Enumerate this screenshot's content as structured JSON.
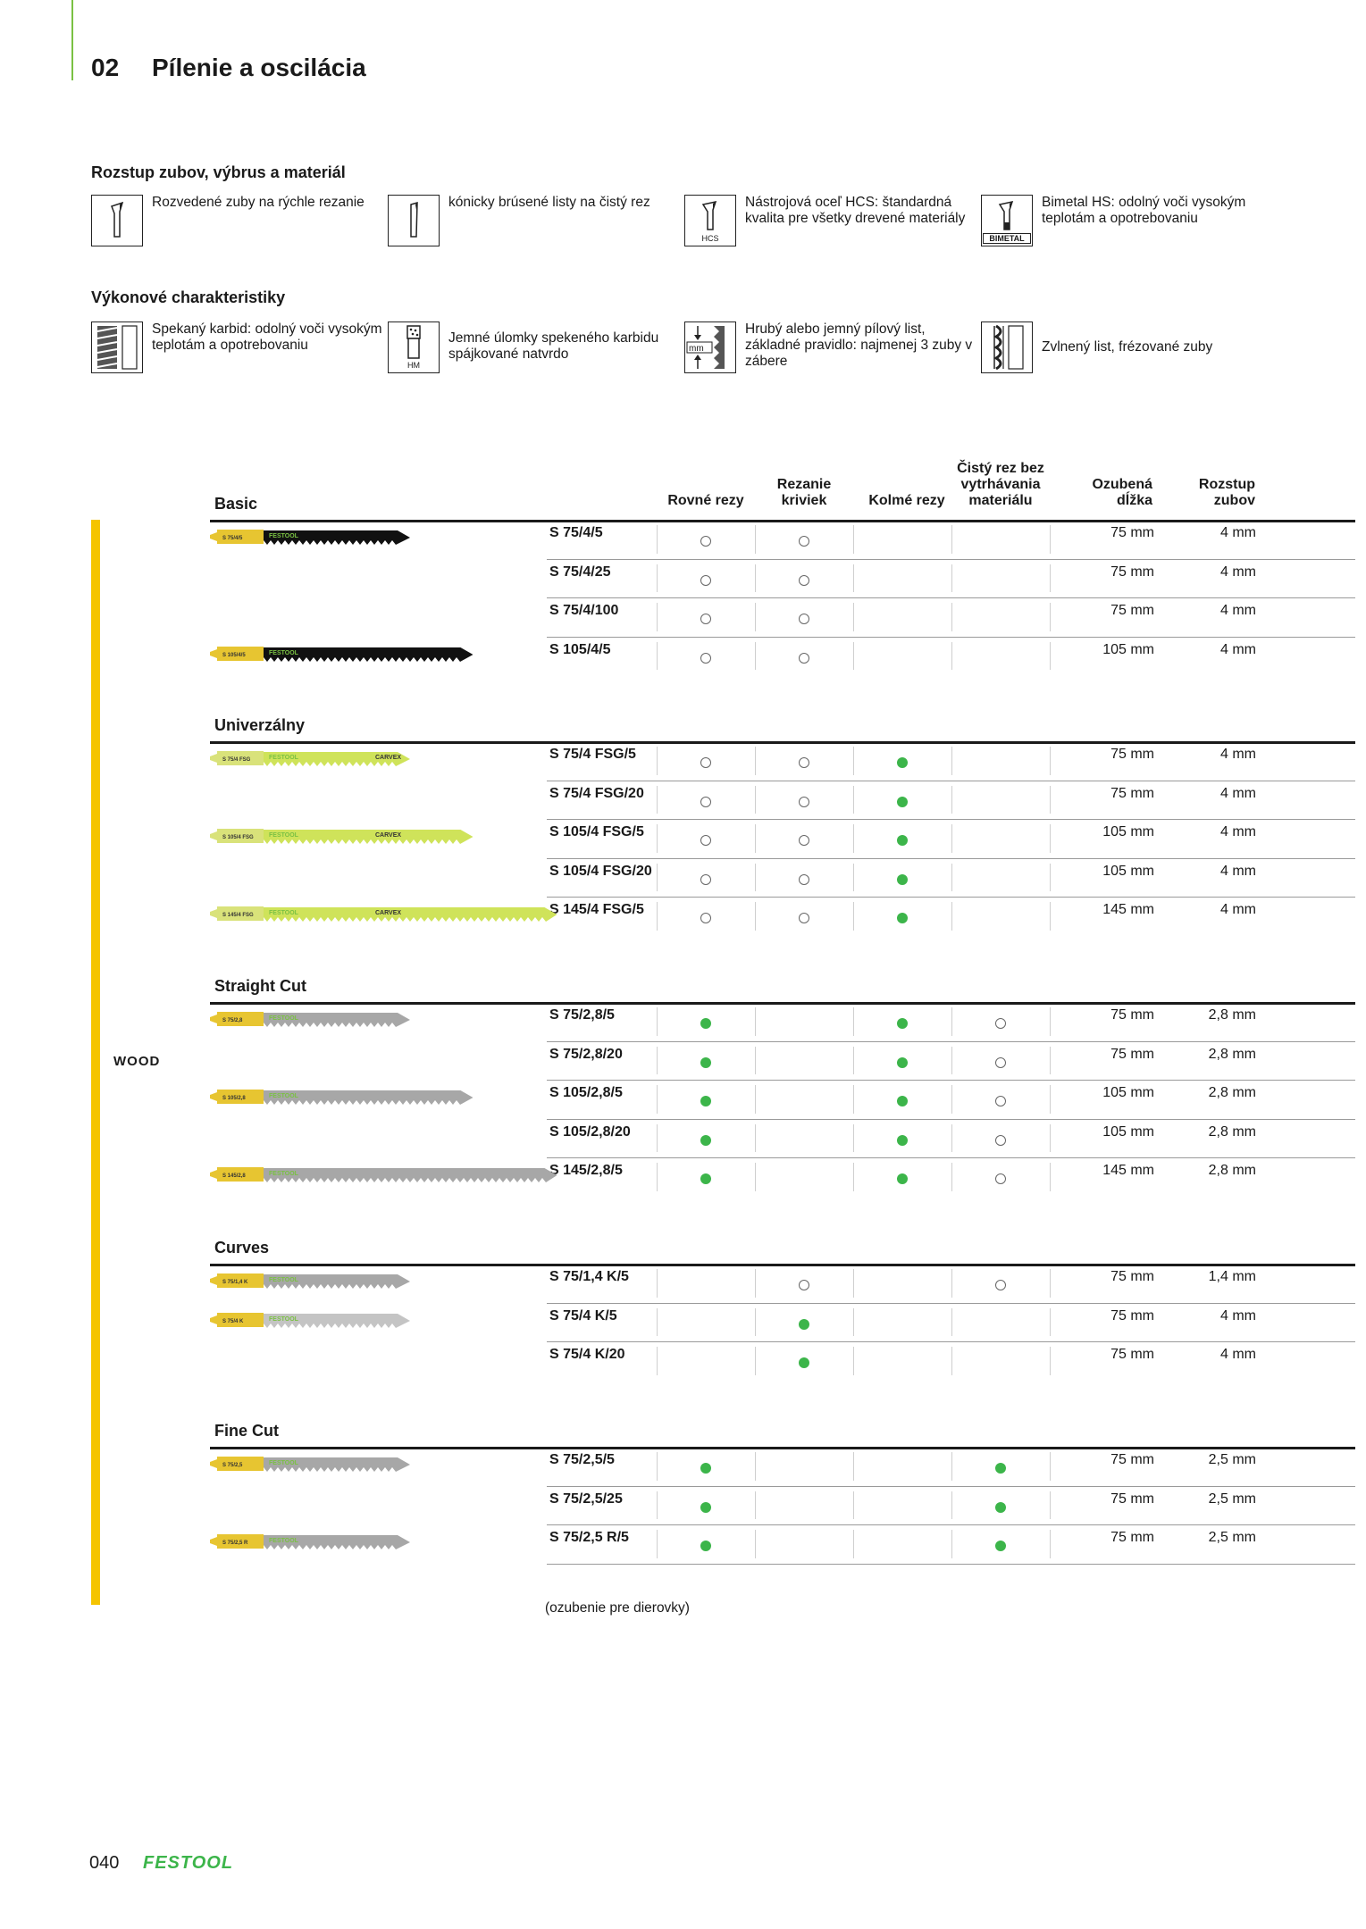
{
  "chapter": {
    "number": "02",
    "title": "Pílenie a oscilácia"
  },
  "section1": {
    "title": "Rozstup zubov, výbrus a materiál",
    "items": [
      {
        "icon": "set-teeth-icon",
        "text": "Rozvedené zuby na rýchle rezanie"
      },
      {
        "icon": "taper-ground-icon",
        "text": "kónicky brúsené listy na čistý rez"
      },
      {
        "icon": "hcs-icon",
        "badge": "HCS",
        "text": "Nástrojová oceľ HCS: štandardná kvalita pre všetky drevené materiály"
      },
      {
        "icon": "bimetal-icon",
        "badge": "BIMETAL",
        "text": "Bimetal HS: odolný voči vysokým teplotám a opotrebovaniu"
      }
    ]
  },
  "section2": {
    "title": "Výkonové charakteristiky",
    "items": [
      {
        "icon": "carbide-icon",
        "text": "Spekaný karbid: odolný voči vysokým teplotám a opotrebovaniu"
      },
      {
        "icon": "hm-grit-icon",
        "badge": "HM",
        "text": "Jemné úlomky spekeného karbidu spájkované natvrdo"
      },
      {
        "icon": "tooth-pitch-icon",
        "badge": "mm",
        "text": "Hrubý alebo jemný pílový list, základné pravidlo: najmenej 3 zuby v zábere"
      },
      {
        "icon": "wavy-blade-icon",
        "text": "Zvlnený list, frézované zuby"
      }
    ]
  },
  "table": {
    "material": "WOOD",
    "headers": {
      "straight": "Rovné rezy",
      "curves_l1": "Rezanie",
      "curves_l2": "kriviek",
      "perp": "Kolmé rezy",
      "clean_l1": "Čistý rez bez",
      "clean_l2": "vytrhávania",
      "clean_l3": "materiálu",
      "length_l1": "Ozubená",
      "length_l2": "dĺžka",
      "pitch_l1": "Rozstup",
      "pitch_l2": "zubov"
    },
    "groups": [
      {
        "name": "Basic",
        "rows": [
          {
            "code": "S 75/4/5",
            "straight": "open",
            "curves": "open",
            "perp": "",
            "clean": "",
            "length": "75 mm",
            "pitch": "4 mm"
          },
          {
            "code": "S 75/4/25",
            "straight": "open",
            "curves": "open",
            "perp": "",
            "clean": "",
            "length": "75 mm",
            "pitch": "4 mm"
          },
          {
            "code": "S 75/4/100",
            "straight": "open",
            "curves": "open",
            "perp": "",
            "clean": "",
            "length": "75 mm",
            "pitch": "4 mm"
          },
          {
            "code": "S 105/4/5",
            "straight": "open",
            "curves": "open",
            "perp": "",
            "clean": "",
            "length": "105 mm",
            "pitch": "4 mm"
          }
        ]
      },
      {
        "name": "Univerzálny",
        "rows": [
          {
            "code": "S 75/4 FSG/5",
            "straight": "open",
            "curves": "open",
            "perp": "full",
            "clean": "",
            "length": "75 mm",
            "pitch": "4 mm"
          },
          {
            "code": "S 75/4 FSG/20",
            "straight": "open",
            "curves": "open",
            "perp": "full",
            "clean": "",
            "length": "75 mm",
            "pitch": "4 mm"
          },
          {
            "code": "S 105/4 FSG/5",
            "straight": "open",
            "curves": "open",
            "perp": "full",
            "clean": "",
            "length": "105 mm",
            "pitch": "4 mm"
          },
          {
            "code": "S 105/4 FSG/20",
            "straight": "open",
            "curves": "open",
            "perp": "full",
            "clean": "",
            "length": "105 mm",
            "pitch": "4 mm"
          },
          {
            "code": "S 145/4 FSG/5",
            "straight": "open",
            "curves": "open",
            "perp": "full",
            "clean": "",
            "length": "145 mm",
            "pitch": "4 mm"
          }
        ]
      },
      {
        "name": "Straight Cut",
        "rows": [
          {
            "code": "S 75/2,8/5",
            "straight": "full",
            "curves": "",
            "perp": "full",
            "clean": "open",
            "length": "75 mm",
            "pitch": "2,8 mm"
          },
          {
            "code": "S 75/2,8/20",
            "straight": "full",
            "curves": "",
            "perp": "full",
            "clean": "open",
            "length": "75 mm",
            "pitch": "2,8 mm"
          },
          {
            "code": "S 105/2,8/5",
            "straight": "full",
            "curves": "",
            "perp": "full",
            "clean": "open",
            "length": "105 mm",
            "pitch": "2,8 mm"
          },
          {
            "code": "S 105/2,8/20",
            "straight": "full",
            "curves": "",
            "perp": "full",
            "clean": "open",
            "length": "105 mm",
            "pitch": "2,8 mm"
          },
          {
            "code": "S 145/2,8/5",
            "straight": "full",
            "curves": "",
            "perp": "full",
            "clean": "open",
            "length": "145 mm",
            "pitch": "2,8 mm"
          }
        ]
      },
      {
        "name": "Curves",
        "rows": [
          {
            "code": "S 75/1,4 K/5",
            "straight": "",
            "curves": "open",
            "perp": "",
            "clean": "open",
            "length": "75 mm",
            "pitch": "1,4 mm"
          },
          {
            "code": "S 75/4 K/5",
            "straight": "",
            "curves": "full",
            "perp": "",
            "clean": "",
            "length": "75 mm",
            "pitch": "4 mm"
          },
          {
            "code": "S 75/4 K/20",
            "straight": "",
            "curves": "full",
            "perp": "",
            "clean": "",
            "length": "75 mm",
            "pitch": "4 mm"
          }
        ]
      },
      {
        "name": "Fine Cut",
        "rows": [
          {
            "code": "S 75/2,5/5",
            "straight": "full",
            "curves": "",
            "perp": "",
            "clean": "full",
            "length": "75 mm",
            "pitch": "2,5 mm"
          },
          {
            "code": "S 75/2,5/25",
            "straight": "full",
            "curves": "",
            "perp": "",
            "clean": "full",
            "length": "75 mm",
            "pitch": "2,5 mm"
          },
          {
            "code": "S 75/2,5 R/5",
            "straight": "full",
            "curves": "",
            "perp": "",
            "clean": "full",
            "length": "75 mm",
            "pitch": "2,5 mm"
          }
        ]
      }
    ],
    "blades": [
      {
        "group": 0,
        "row": 0,
        "label": "S 75/4/5",
        "brand": "FESTOOL",
        "color": "#111111",
        "shank": "#e7c531",
        "len": 75
      },
      {
        "group": 0,
        "row": 3,
        "label": "S 105/4/5",
        "brand": "FESTOOL",
        "color": "#111111",
        "shank": "#e7c531",
        "len": 105
      },
      {
        "group": 1,
        "row": 0,
        "label": "S 75/4 FSG",
        "brand": "FESTOOL",
        "extra": "CARVEX",
        "color": "#cfe35a",
        "shank": "#d9e27a",
        "len": 75
      },
      {
        "group": 1,
        "row": 2,
        "label": "S 105/4 FSG",
        "brand": "FESTOOL",
        "extra": "CARVEX",
        "color": "#cfe35a",
        "shank": "#d9e27a",
        "len": 105
      },
      {
        "group": 1,
        "row": 4,
        "label": "S 145/4 FSG",
        "brand": "FESTOOL",
        "extra": "CARVEX",
        "color": "#cfe35a",
        "shank": "#d9e27a",
        "len": 145
      },
      {
        "group": 2,
        "row": 0,
        "label": "S 75/2,8",
        "brand": "FESTOOL",
        "color": "#a7a7a7",
        "shank": "#e7c531",
        "len": 75
      },
      {
        "group": 2,
        "row": 2,
        "label": "S 105/2,8",
        "brand": "FESTOOL",
        "color": "#a7a7a7",
        "shank": "#e7c531",
        "len": 105
      },
      {
        "group": 2,
        "row": 4,
        "label": "S 145/2,8",
        "brand": "FESTOOL",
        "color": "#a7a7a7",
        "shank": "#e7c531",
        "len": 145
      },
      {
        "group": 3,
        "row": 0,
        "label": "S 75/1,4 K",
        "brand": "FESTOOL",
        "color": "#a7a7a7",
        "shank": "#e7c531",
        "len": 75
      },
      {
        "group": 3,
        "row": 1,
        "label": "S 75/4 K",
        "brand": "FESTOOL",
        "color": "#c4c4c4",
        "shank": "#e7c531",
        "len": 75
      },
      {
        "group": 4,
        "row": 0,
        "label": "S 75/2,5",
        "brand": "FESTOOL",
        "color": "#a7a7a7",
        "shank": "#e7c531",
        "len": 75
      },
      {
        "group": 4,
        "row": 2,
        "label": "S 75/2,5 R",
        "brand": "FESTOOL",
        "color": "#a7a7a7",
        "shank": "#e7c531",
        "len": 75
      }
    ]
  },
  "footnote": "(ozubenie pre dierovky)",
  "footer": {
    "page": "040",
    "logo": "FESTOOL"
  },
  "colors": {
    "accent": "#7ac143",
    "green_dot": "#3cb54a",
    "yellow_bar": "#f5c400"
  }
}
